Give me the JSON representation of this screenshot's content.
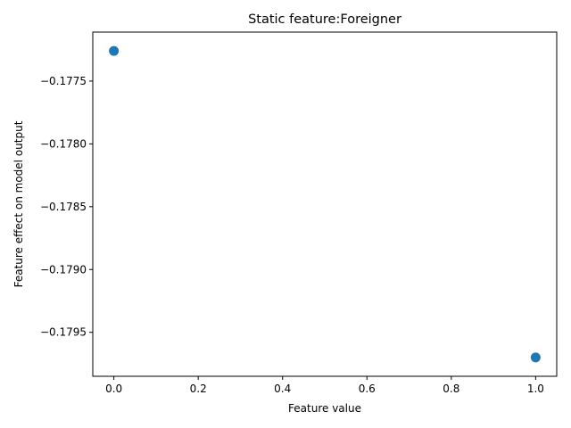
{
  "chart_data": {
    "type": "scatter",
    "title": "Static feature:Foreigner",
    "xlabel": "Feature value",
    "ylabel": "Feature effect on model output",
    "xlim": [
      -0.05,
      1.05
    ],
    "ylim": [
      -0.17985,
      -0.17711
    ],
    "x_ticks": [
      0.0,
      0.2,
      0.4,
      0.6,
      0.8,
      1.0
    ],
    "x_tick_labels": [
      "0.0",
      "0.2",
      "0.4",
      "0.6",
      "0.8",
      "1.0"
    ],
    "y_ticks": [
      -0.1775,
      -0.178,
      -0.1785,
      -0.179,
      -0.1795
    ],
    "y_tick_labels": [
      "−0.1775",
      "−0.1780",
      "−0.1785",
      "−0.1790",
      "−0.1795"
    ],
    "grid": false,
    "series": [
      {
        "color": "#1f77b4",
        "points": [
          {
            "x": 0.0,
            "y": -0.17726
          },
          {
            "x": 1.0,
            "y": -0.1797
          }
        ]
      }
    ]
  }
}
